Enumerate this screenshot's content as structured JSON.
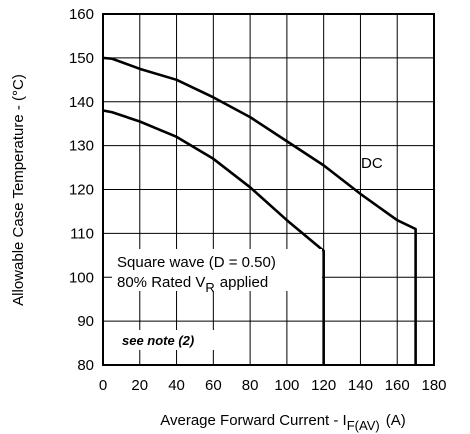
{
  "chart_data": {
    "type": "line",
    "xlabel": "Average Forward Current - I",
    "xlabel_sub": "F(AV)",
    "xlabel_unit": "(A)",
    "ylabel": "Allowable Case Temperature - (°C)",
    "xlim": [
      0,
      180
    ],
    "ylim": [
      80,
      160
    ],
    "xticks": [
      0,
      20,
      40,
      60,
      80,
      100,
      120,
      140,
      160,
      180
    ],
    "yticks": [
      80,
      90,
      100,
      110,
      120,
      130,
      140,
      150,
      160
    ],
    "grid": true,
    "series": [
      {
        "name": "DC",
        "x": [
          0,
          5,
          20,
          40,
          60,
          80,
          100,
          120,
          140,
          160,
          170,
          170
        ],
        "y": [
          150,
          149.8,
          147.5,
          145,
          141,
          136.5,
          131,
          125.5,
          119,
          113,
          111,
          80
        ]
      },
      {
        "name": "Square wave (D = 0.50)",
        "x": [
          0,
          5,
          20,
          40,
          60,
          80,
          100,
          120,
          120
        ],
        "y": [
          138,
          137.6,
          135.5,
          132,
          127,
          120.5,
          113,
          106,
          80
        ]
      }
    ],
    "annotations": {
      "dc": "DC",
      "square_line1": "Square wave (D = 0.50)",
      "square_line2_pre": "80% Rated V",
      "square_line2_sub": "R",
      "square_line2_post": "applied",
      "note": "see note (2)"
    }
  }
}
